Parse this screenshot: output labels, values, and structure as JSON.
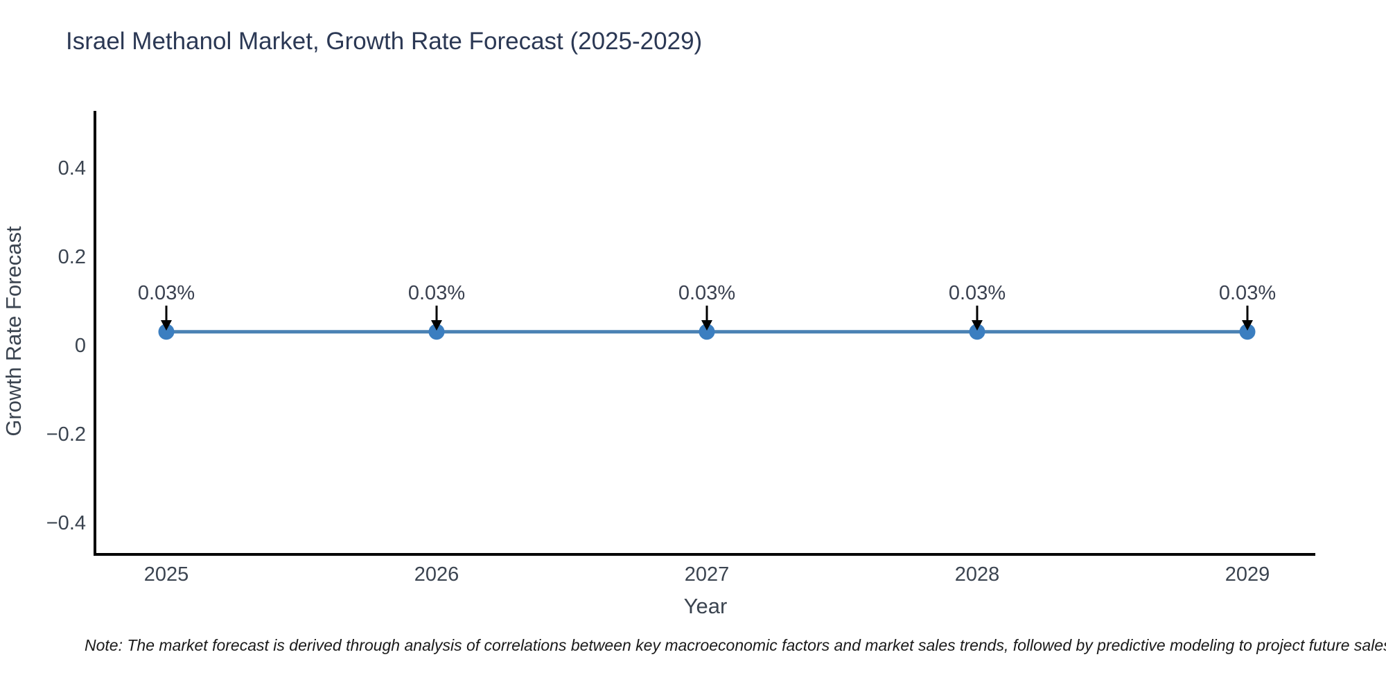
{
  "note": "Note: The market forecast is derived through analysis of correlations between key macroeconomic factors and market sales trends, followed by predictive modeling to project future sales",
  "chart_data": {
    "type": "line",
    "title": "Israel Methanol Market, Growth Rate Forecast (2025-2029)",
    "xlabel": "Year",
    "ylabel": "Growth Rate Forecast",
    "x": [
      2025,
      2026,
      2027,
      2028,
      2029
    ],
    "y": [
      0.03,
      0.03,
      0.03,
      0.03,
      0.03
    ],
    "point_labels": [
      "0.03%",
      "0.03%",
      "0.03%",
      "0.03%",
      "0.03%"
    ],
    "xtick_labels": [
      "2025",
      "2026",
      "2027",
      "2028",
      "2029"
    ],
    "ytick_values": [
      0.4,
      0.2,
      0,
      -0.2,
      -0.4
    ],
    "ytick_labels": [
      "0.4",
      "0.2",
      "0",
      "−0.2",
      "−0.4"
    ],
    "xlim": [
      2024.74,
      2029.25
    ],
    "ylim": [
      -0.47,
      0.53
    ],
    "grid": false,
    "legend": "none",
    "line_color": "#4a82b4",
    "marker_color": "#3b7ec0",
    "annotation_arrow_color": "#000000",
    "axis_color": "#000000"
  }
}
